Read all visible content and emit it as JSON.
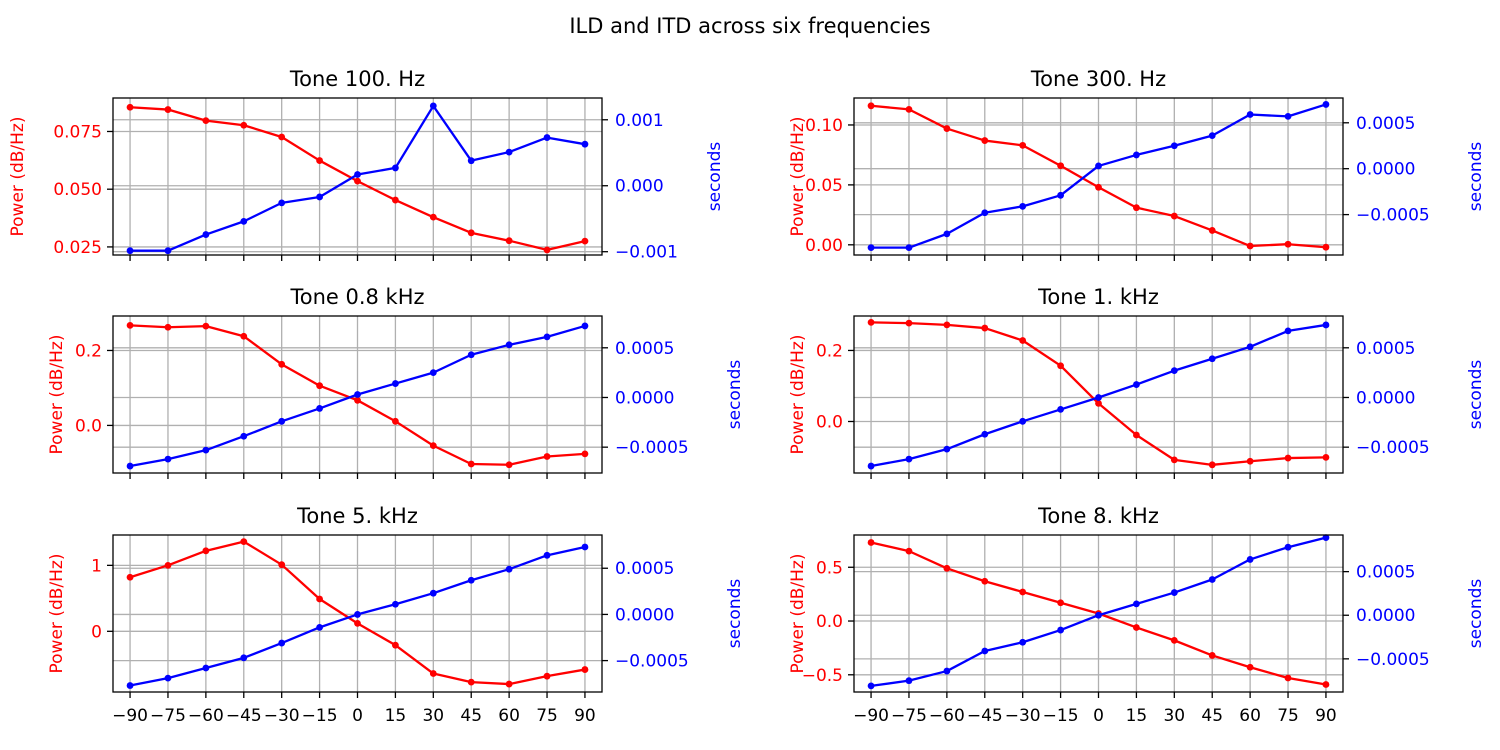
{
  "figure": {
    "suptitle": "ILD and ITD across six frequencies"
  },
  "colors": {
    "ild": "#ff0000",
    "itd": "#0000ff",
    "grid": "#b0b0b0",
    "axis": "#000000"
  },
  "chart_data": [
    {
      "type": "line",
      "title": "Tone 100. Hz",
      "x": [
        -90,
        -75,
        -60,
        -45,
        -30,
        -15,
        0,
        15,
        30,
        45,
        60,
        75,
        90
      ],
      "x_ticks": [
        "−90",
        "−75",
        "−60",
        "−45",
        "−30",
        "−15",
        "0",
        "15",
        "30",
        "45",
        "60",
        "75",
        "90"
      ],
      "ylabel_left": "Power (dB/Hz)",
      "ylabel_right": "seconds",
      "ylim_left": [
        0.0215,
        0.0895
      ],
      "yticks_left": [
        0.025,
        0.05,
        0.075
      ],
      "ytick_labels_left": [
        "0.025",
        "0.050",
        "0.075"
      ],
      "ylim_right": [
        -0.00105,
        0.00133
      ],
      "yticks_right": [
        -0.001,
        0.0,
        0.001
      ],
      "ytick_labels_right": [
        "−0.001",
        "0.000",
        "0.001"
      ],
      "grid": true,
      "series": [
        {
          "axis": "left",
          "values": [
            0.0855,
            0.0845,
            0.0797,
            0.0777,
            0.0726,
            0.0624,
            0.0535,
            0.0453,
            0.0379,
            0.0311,
            0.0277,
            0.0237,
            0.0275
          ]
        },
        {
          "axis": "right",
          "values": [
            -0.000985,
            -0.000985,
            -0.00074,
            -0.00054,
            -0.00026,
            -0.00017,
            0.00017,
            0.00027,
            0.00121,
            0.00038,
            0.00051,
            0.00073,
            0.00063
          ]
        }
      ]
    },
    {
      "type": "line",
      "title": "Tone 300. Hz",
      "x": [
        -90,
        -75,
        -60,
        -45,
        -30,
        -15,
        0,
        15,
        30,
        45,
        60,
        75,
        90
      ],
      "x_ticks": [
        "−90",
        "−75",
        "−60",
        "−45",
        "−30",
        "−15",
        "0",
        "15",
        "30",
        "45",
        "60",
        "75",
        "90"
      ],
      "ylabel_left": "Power (dB/Hz)",
      "ylabel_right": "seconds",
      "ylim_left": [
        -0.0085,
        0.1225
      ],
      "yticks_left": [
        0.0,
        0.05,
        0.1
      ],
      "ytick_labels_left": [
        "0.00",
        "0.05",
        "0.10"
      ],
      "ylim_right": [
        -0.00094,
        0.00077
      ],
      "yticks_right": [
        -0.0005,
        0.0,
        0.0005
      ],
      "ytick_labels_right": [
        "−0.0005",
        "0.0000",
        "0.0005"
      ],
      "grid": true,
      "series": [
        {
          "axis": "left",
          "values": [
            0.116,
            0.113,
            0.097,
            0.087,
            0.083,
            0.066,
            0.048,
            0.031,
            0.024,
            0.012,
            -0.001,
            0.0005,
            -0.002
          ]
        },
        {
          "axis": "right",
          "values": [
            -0.00086,
            -0.00086,
            -0.00071,
            -0.00048,
            -0.00041,
            -0.00029,
            3e-05,
            0.00015,
            0.00025,
            0.00036,
            0.00059,
            0.00057,
            0.0007
          ]
        }
      ]
    },
    {
      "type": "line",
      "title": "Tone 0.8 kHz",
      "x": [
        -90,
        -75,
        -60,
        -45,
        -30,
        -15,
        0,
        15,
        30,
        45,
        60,
        75,
        90
      ],
      "x_ticks": [
        "−90",
        "−75",
        "−60",
        "−45",
        "−30",
        "−15",
        "0",
        "15",
        "30",
        "45",
        "60",
        "75",
        "90"
      ],
      "ylabel_left": "Power (dB/Hz)",
      "ylabel_right": "seconds",
      "ylim_left": [
        -0.127,
        0.292
      ],
      "yticks_left": [
        0.0,
        0.2
      ],
      "ytick_labels_left": [
        "0.0",
        "0.2"
      ],
      "ylim_right": [
        -0.00076,
        0.00082
      ],
      "yticks_right": [
        -0.0005,
        0.0,
        0.0005
      ],
      "ytick_labels_right": [
        "−0.0005",
        "0.0000",
        "0.0005"
      ],
      "grid": true,
      "series": [
        {
          "axis": "left",
          "values": [
            0.267,
            0.262,
            0.265,
            0.238,
            0.163,
            0.106,
            0.067,
            0.011,
            -0.054,
            -0.103,
            -0.105,
            -0.083,
            -0.076
          ]
        },
        {
          "axis": "right",
          "values": [
            -0.00069,
            -0.00062,
            -0.00053,
            -0.00039,
            -0.00024,
            -0.00011,
            3e-05,
            0.00014,
            0.00025,
            0.00043,
            0.00053,
            0.00061,
            0.00072
          ]
        }
      ]
    },
    {
      "type": "line",
      "title": "Tone 1. kHz",
      "x": [
        -90,
        -75,
        -60,
        -45,
        -30,
        -15,
        0,
        15,
        30,
        45,
        60,
        75,
        90
      ],
      "x_ticks": [
        "−90",
        "−75",
        "−60",
        "−45",
        "−30",
        "−15",
        "0",
        "15",
        "30",
        "45",
        "60",
        "75",
        "90"
      ],
      "ylabel_left": "Power (dB/Hz)",
      "ylabel_right": "seconds",
      "ylim_left": [
        -0.145,
        0.297
      ],
      "yticks_left": [
        0.0,
        0.2
      ],
      "ytick_labels_left": [
        "0.0",
        "0.2"
      ],
      "ylim_right": [
        -0.00076,
        0.00082
      ],
      "yticks_right": [
        -0.0005,
        0.0,
        0.0005
      ],
      "ytick_labels_right": [
        "−0.0005",
        "0.0000",
        "0.0005"
      ],
      "grid": true,
      "series": [
        {
          "axis": "left",
          "values": [
            0.279,
            0.277,
            0.272,
            0.263,
            0.228,
            0.157,
            0.051,
            -0.038,
            -0.108,
            -0.122,
            -0.112,
            -0.103,
            -0.101
          ]
        },
        {
          "axis": "right",
          "values": [
            -0.00069,
            -0.00062,
            -0.00052,
            -0.00037,
            -0.00024,
            -0.00012,
            0.0,
            0.00013,
            0.00027,
            0.00039,
            0.00051,
            0.00067,
            0.00073
          ]
        }
      ]
    },
    {
      "type": "line",
      "title": "Tone 5. kHz",
      "x": [
        -90,
        -75,
        -60,
        -45,
        -30,
        -15,
        0,
        15,
        30,
        45,
        60,
        75,
        90
      ],
      "x_ticks": [
        "−90",
        "−75",
        "−60",
        "−45",
        "−30",
        "−15",
        "0",
        "15",
        "30",
        "45",
        "60",
        "75",
        "90"
      ],
      "ylabel_left": "Power (dB/Hz)",
      "ylabel_right": "seconds",
      "ylim_left": [
        -0.92,
        1.46
      ],
      "yticks_left": [
        0,
        1
      ],
      "ytick_labels_left": [
        "0",
        "1"
      ],
      "ylim_right": [
        -0.00084,
        0.00086
      ],
      "yticks_right": [
        -0.0005,
        0.0,
        0.0005
      ],
      "ytick_labels_right": [
        "−0.0005",
        "0.0000",
        "0.0005"
      ],
      "grid": true,
      "series": [
        {
          "axis": "left",
          "values": [
            0.82,
            1.0,
            1.22,
            1.36,
            1.01,
            0.49,
            0.12,
            -0.21,
            -0.64,
            -0.77,
            -0.8,
            -0.68,
            -0.58
          ]
        },
        {
          "axis": "right",
          "values": [
            -0.00077,
            -0.00069,
            -0.00058,
            -0.00047,
            -0.00031,
            -0.00014,
            0.0,
            0.00011,
            0.00023,
            0.00037,
            0.00049,
            0.00064,
            0.00073
          ]
        }
      ]
    },
    {
      "type": "line",
      "title": "Tone 8. kHz",
      "x": [
        -90,
        -75,
        -60,
        -45,
        -30,
        -15,
        0,
        15,
        30,
        45,
        60,
        75,
        90
      ],
      "x_ticks": [
        "−90",
        "−75",
        "−60",
        "−45",
        "−30",
        "−15",
        "0",
        "15",
        "30",
        "45",
        "60",
        "75",
        "90"
      ],
      "ylabel_left": "Power (dB/Hz)",
      "ylabel_right": "seconds",
      "ylim_left": [
        -0.66,
        0.8
      ],
      "yticks_left": [
        -0.5,
        0.0,
        0.5
      ],
      "ytick_labels_left": [
        "−0.5",
        "0.0",
        "0.5"
      ],
      "ylim_right": [
        -0.00088,
        0.00092
      ],
      "yticks_right": [
        -0.0005,
        0.0,
        0.0005
      ],
      "ytick_labels_right": [
        "−0.0005",
        "0.0000",
        "0.0005"
      ],
      "grid": true,
      "series": [
        {
          "axis": "left",
          "values": [
            0.73,
            0.65,
            0.49,
            0.37,
            0.27,
            0.17,
            0.07,
            -0.06,
            -0.18,
            -0.32,
            -0.43,
            -0.53,
            -0.59
          ]
        },
        {
          "axis": "right",
          "values": [
            -0.00081,
            -0.00075,
            -0.00064,
            -0.00041,
            -0.00031,
            -0.00017,
            0.0,
            0.00013,
            0.00026,
            0.00041,
            0.00064,
            0.00078,
            0.00089
          ]
        }
      ]
    }
  ]
}
